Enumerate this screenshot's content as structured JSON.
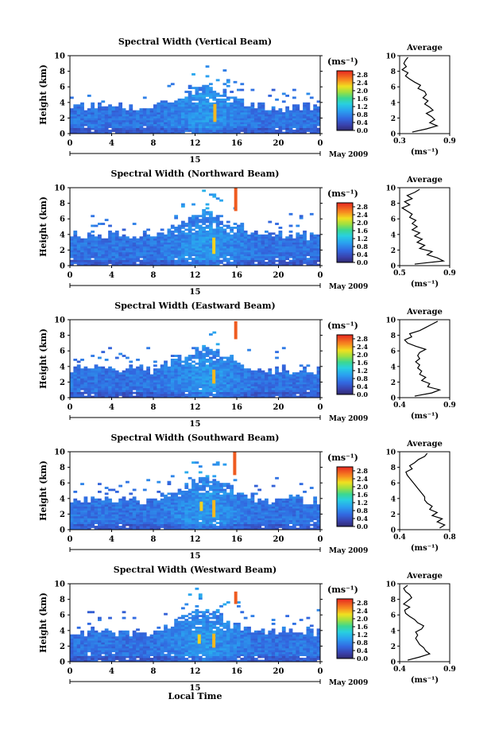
{
  "figure": {
    "x_label": "Local Time",
    "date_label": "May 2009",
    "day_label": "15",
    "colorbar_unit": "(ms⁻¹)",
    "profile_title": "Average",
    "profile_xunit": "(ms⁻¹)"
  },
  "chart_data": [
    {
      "type": "heatmap",
      "title": "Spectral Width (Vertical Beam)",
      "ylabel": "Height (km)",
      "xlabel": "Local Time",
      "xlim": [
        0,
        24
      ],
      "ylim": [
        0,
        10
      ],
      "xticks": [
        "0",
        "4",
        "8",
        "12",
        "16",
        "20",
        "0"
      ],
      "yticks": [
        "0",
        "2",
        "4",
        "6",
        "8",
        "10"
      ],
      "colorbar": {
        "ticks": [
          "0.0",
          "0.4",
          "0.8",
          "1.2",
          "1.6",
          "2.0",
          "2.4",
          "2.8"
        ],
        "range": [
          0,
          3.0
        ]
      },
      "coverage_top_km": 6.3,
      "spikes": [
        {
          "time": 13.9,
          "h0": 1.5,
          "h1": 3.8,
          "value": 2.4
        }
      ],
      "profile": {
        "xlim": [
          0.3,
          0.9
        ],
        "xticks": [
          "0.3",
          "0.9"
        ],
        "heights": [
          0.2,
          0.6,
          1.0,
          1.4,
          1.8,
          2.2,
          2.6,
          3.0,
          3.4,
          3.8,
          4.2,
          4.6,
          5.0,
          5.4,
          5.8,
          6.2,
          6.6,
          7.0,
          7.4,
          7.8,
          8.2,
          8.6,
          9.0,
          9.4,
          9.8
        ],
        "values": [
          0.45,
          0.62,
          0.75,
          0.66,
          0.72,
          0.68,
          0.62,
          0.7,
          0.66,
          0.6,
          0.64,
          0.58,
          0.62,
          0.6,
          0.52,
          0.55,
          0.48,
          0.42,
          0.37,
          0.4,
          0.33,
          0.38,
          0.35,
          0.37,
          0.4
        ]
      }
    },
    {
      "type": "heatmap",
      "title": "Spectral Width (Northward Beam)",
      "ylabel": "Height (km)",
      "xlabel": "Local Time",
      "xlim": [
        0,
        24
      ],
      "ylim": [
        0,
        10
      ],
      "xticks": [
        "0",
        "4",
        "8",
        "12",
        "16",
        "20",
        "0"
      ],
      "yticks": [
        "0",
        "2",
        "4",
        "6",
        "8",
        "10"
      ],
      "colorbar": {
        "ticks": [
          "0.0",
          "0.4",
          "0.8",
          "1.2",
          "1.6",
          "2.0",
          "2.4",
          "2.8"
        ],
        "range": [
          0,
          3.0
        ]
      },
      "coverage_top_km": 7.2,
      "spikes": [
        {
          "time": 13.8,
          "h0": 1.5,
          "h1": 3.6,
          "value": 2.3
        },
        {
          "time": 15.9,
          "h0": 7.0,
          "h1": 10.0,
          "value": 2.8
        }
      ],
      "profile": {
        "xlim": [
          0.5,
          0.9
        ],
        "xticks": [
          "0.5",
          "0.9"
        ],
        "heights": [
          0.2,
          0.6,
          1.0,
          1.4,
          1.8,
          2.2,
          2.6,
          3.0,
          3.4,
          3.8,
          4.2,
          4.6,
          5.0,
          5.4,
          5.8,
          6.2,
          6.6,
          7.0,
          7.4,
          7.8,
          8.2,
          8.6,
          9.0,
          9.4,
          9.8
        ],
        "values": [
          0.62,
          0.85,
          0.8,
          0.72,
          0.76,
          0.66,
          0.7,
          0.64,
          0.68,
          0.62,
          0.66,
          0.6,
          0.64,
          0.6,
          0.63,
          0.58,
          0.6,
          0.56,
          0.52,
          0.58,
          0.54,
          0.6,
          0.56,
          0.62,
          0.66
        ]
      }
    },
    {
      "type": "heatmap",
      "title": "Spectral Width (Eastward Beam)",
      "ylabel": "Height (km)",
      "xlabel": "Local Time",
      "xlim": [
        0,
        24
      ],
      "ylim": [
        0,
        10
      ],
      "xticks": [
        "0",
        "4",
        "8",
        "12",
        "16",
        "20",
        "0"
      ],
      "yticks": [
        "0",
        "2",
        "4",
        "6",
        "8",
        "10"
      ],
      "colorbar": {
        "ticks": [
          "0.0",
          "0.4",
          "0.8",
          "1.2",
          "1.6",
          "2.0",
          "2.4",
          "2.8"
        ],
        "range": [
          0,
          3.0
        ]
      },
      "coverage_top_km": 6.5,
      "spikes": [
        {
          "time": 13.8,
          "h0": 1.8,
          "h1": 3.6,
          "value": 2.4
        },
        {
          "time": 15.9,
          "h0": 7.5,
          "h1": 9.8,
          "value": 2.8
        }
      ],
      "profile": {
        "xlim": [
          0.4,
          0.9
        ],
        "xticks": [
          "0.4",
          "0.9"
        ],
        "heights": [
          0.2,
          0.6,
          1.0,
          1.4,
          1.8,
          2.2,
          2.6,
          3.0,
          3.4,
          3.8,
          4.2,
          4.6,
          5.0,
          5.4,
          5.8,
          6.2,
          6.6,
          7.0,
          7.4,
          7.8,
          8.2,
          8.6,
          9.0,
          9.4,
          9.8
        ],
        "values": [
          0.55,
          0.72,
          0.8,
          0.68,
          0.7,
          0.62,
          0.66,
          0.6,
          0.62,
          0.58,
          0.6,
          0.56,
          0.6,
          0.58,
          0.6,
          0.66,
          0.56,
          0.48,
          0.45,
          0.52,
          0.5,
          0.6,
          0.66,
          0.72,
          0.78
        ]
      }
    },
    {
      "type": "heatmap",
      "title": "Spectral Width (Southward Beam)",
      "ylabel": "Height (km)",
      "xlabel": "Local Time",
      "xlim": [
        0,
        24
      ],
      "ylim": [
        0,
        10
      ],
      "xticks": [
        "0",
        "4",
        "8",
        "12",
        "16",
        "20",
        "0"
      ],
      "yticks": [
        "0",
        "2",
        "4",
        "6",
        "8",
        "10"
      ],
      "colorbar": {
        "ticks": [
          "0.0",
          "0.4",
          "0.8",
          "1.2",
          "1.6",
          "2.0",
          "2.4",
          "2.8"
        ],
        "range": [
          0,
          3.0
        ]
      },
      "coverage_top_km": 7.0,
      "spikes": [
        {
          "time": 12.6,
          "h0": 2.4,
          "h1": 3.6,
          "value": 2.3
        },
        {
          "time": 13.8,
          "h0": 1.6,
          "h1": 3.8,
          "value": 2.4
        },
        {
          "time": 15.8,
          "h0": 7.0,
          "h1": 10.0,
          "value": 2.8
        }
      ],
      "profile": {
        "xlim": [
          0.4,
          0.8
        ],
        "xticks": [
          "0.4",
          "0.8"
        ],
        "heights": [
          0.2,
          0.6,
          1.0,
          1.4,
          1.8,
          2.2,
          2.6,
          3.0,
          3.4,
          3.8,
          4.2,
          4.6,
          5.0,
          5.4,
          5.8,
          6.2,
          6.6,
          7.0,
          7.4,
          7.8,
          8.2,
          8.6,
          9.0,
          9.4,
          9.8
        ],
        "values": [
          0.72,
          0.76,
          0.7,
          0.74,
          0.66,
          0.7,
          0.64,
          0.66,
          0.62,
          0.6,
          0.6,
          0.58,
          0.56,
          0.54,
          0.52,
          0.5,
          0.48,
          0.46,
          0.45,
          0.5,
          0.48,
          0.52,
          0.55,
          0.6,
          0.62
        ]
      }
    },
    {
      "type": "heatmap",
      "title": "Spectral Width (Westward Beam)",
      "ylabel": "Height (km)",
      "xlabel": "Local Time",
      "xlim": [
        0,
        24
      ],
      "ylim": [
        0,
        10
      ],
      "xticks": [
        "0",
        "4",
        "8",
        "12",
        "16",
        "20",
        "0"
      ],
      "yticks": [
        "0",
        "2",
        "4",
        "6",
        "8",
        "10"
      ],
      "colorbar": {
        "ticks": [
          "0.0",
          "0.4",
          "0.8",
          "1.2",
          "1.6",
          "2.0",
          "2.4",
          "2.8"
        ],
        "range": [
          0,
          3.0
        ]
      },
      "coverage_top_km": 7.0,
      "spikes": [
        {
          "time": 12.4,
          "h0": 2.3,
          "h1": 3.5,
          "value": 2.3
        },
        {
          "time": 13.8,
          "h0": 1.8,
          "h1": 3.6,
          "value": 2.4
        },
        {
          "time": 15.9,
          "h0": 7.4,
          "h1": 9.0,
          "value": 2.8
        }
      ],
      "profile": {
        "xlim": [
          0.4,
          0.9
        ],
        "xticks": [
          "0.4",
          "0.9"
        ],
        "heights": [
          0.2,
          0.6,
          1.0,
          1.4,
          1.8,
          2.2,
          2.6,
          3.0,
          3.4,
          3.8,
          4.2,
          4.6,
          5.0,
          5.4,
          5.8,
          6.2,
          6.6,
          7.0,
          7.4,
          7.8,
          8.2,
          8.6,
          9.0,
          9.4,
          9.8
        ],
        "values": [
          0.48,
          0.6,
          0.7,
          0.66,
          0.64,
          0.6,
          0.58,
          0.56,
          0.58,
          0.56,
          0.62,
          0.64,
          0.58,
          0.55,
          0.5,
          0.46,
          0.45,
          0.5,
          0.44,
          0.48,
          0.52,
          0.5,
          0.46,
          0.44,
          0.48
        ]
      }
    }
  ]
}
